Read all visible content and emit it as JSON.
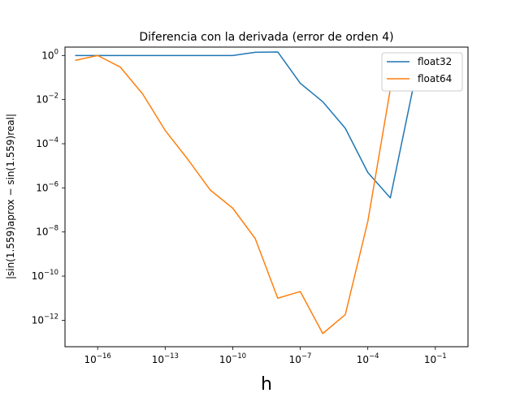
{
  "chart_data": {
    "type": "line",
    "title": "Diferencia con la derivada (error de orden 4)",
    "xlabel": "h",
    "ylabel": "|sin(1.559)aprox − sin(1.559)real|",
    "x_scale": "log",
    "y_scale": "log",
    "xlim": [
      1e-18,
      1
    ],
    "ylim": [
      1e-13,
      1
    ],
    "x_ticks": [
      {
        "base": "10",
        "exp": "−16",
        "value": 1e-16
      },
      {
        "base": "10",
        "exp": "−13",
        "value": 1e-13
      },
      {
        "base": "10",
        "exp": "−10",
        "value": 1e-10
      },
      {
        "base": "10",
        "exp": "−7",
        "value": 1e-07
      },
      {
        "base": "10",
        "exp": "−4",
        "value": 0.0001
      },
      {
        "base": "10",
        "exp": "−1",
        "value": 0.1
      }
    ],
    "y_ticks": [
      {
        "base": "10",
        "exp": "0",
        "value": 1
      },
      {
        "base": "10",
        "exp": "−2",
        "value": 0.01
      },
      {
        "base": "10",
        "exp": "−4",
        "value": 0.0001
      },
      {
        "base": "10",
        "exp": "−6",
        "value": 1e-06
      },
      {
        "base": "10",
        "exp": "−8",
        "value": 1e-08
      },
      {
        "base": "10",
        "exp": "−10",
        "value": 1e-10
      },
      {
        "base": "10",
        "exp": "−12",
        "value": 1e-12
      }
    ],
    "grid": false,
    "legend_position": "top-right",
    "x": [
      1e-17,
      1e-16,
      1e-15,
      1e-14,
      1e-13,
      1e-12,
      1e-11,
      1e-10,
      1e-09,
      1e-08,
      1e-07,
      1e-06,
      1e-05,
      0.0001,
      0.001,
      0.01,
      0.1
    ],
    "series": [
      {
        "name": "float32",
        "color": "#1f77b4",
        "x": [
          1e-17,
          1e-16,
          1e-15,
          1e-14,
          1e-13,
          1e-12,
          1e-11,
          1e-10,
          1e-09,
          1e-08,
          1e-07,
          1e-06,
          1e-05,
          0.0001,
          0.001,
          0.01,
          0.1
        ],
        "values": [
          1.0,
          1.0,
          1.0,
          1.0,
          1.0,
          1.0,
          1.0,
          1.0,
          1.4,
          1.45,
          0.055,
          0.008,
          0.0005,
          5e-06,
          3.5e-07,
          0.03,
          null
        ]
      },
      {
        "name": "float64",
        "color": "#ff7f0e",
        "x": [
          1e-17,
          1e-16,
          1e-15,
          1e-14,
          1e-13,
          1e-12,
          1e-11,
          1e-10,
          1e-09,
          1e-08,
          1e-07,
          1e-06,
          1e-05,
          0.0001,
          0.001,
          0.01,
          0.1
        ],
        "values": [
          0.6,
          1.0,
          0.3,
          0.018,
          0.0004,
          2e-05,
          8e-07,
          1.2e-07,
          5e-09,
          1e-11,
          2e-11,
          2.5e-13,
          1.8e-12,
          3e-08,
          0.03,
          null,
          null
        ]
      }
    ]
  }
}
